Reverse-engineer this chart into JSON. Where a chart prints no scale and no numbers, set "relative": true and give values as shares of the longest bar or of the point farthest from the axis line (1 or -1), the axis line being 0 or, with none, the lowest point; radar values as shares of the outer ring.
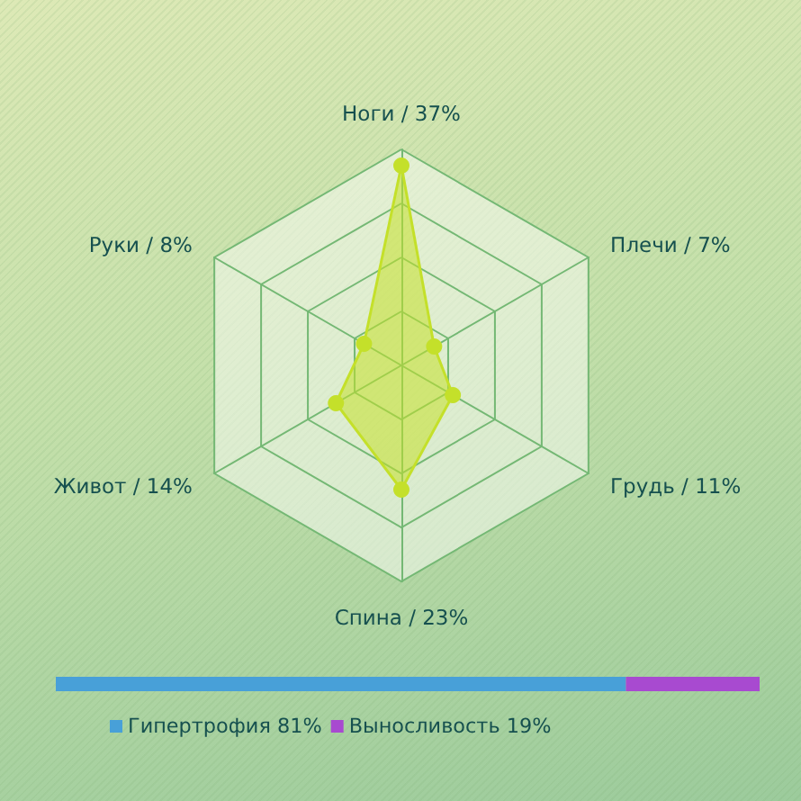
{
  "chart_data": [
    {
      "type": "radar",
      "relative": true,
      "grid": true,
      "marker": "circle",
      "categories": [
        "Ноги / 37%",
        "Плечи / 7%",
        "Грудь / 11%",
        "Спина / 23%",
        "Живот / 14%",
        "Руки / 8%"
      ],
      "series": [
        {
          "color": "#c4e02a",
          "values": [
            0.925,
            0.175,
            0.275,
            0.575,
            0.35,
            0.2
          ]
        }
      ]
    },
    {
      "type": "bar",
      "orientation": "horizontal",
      "stacked": true,
      "relative": true,
      "categories": [
        null
      ],
      "legend": "bottom",
      "series": [
        {
          "name": "Гипертрофия 81%",
          "color": "#48a0d8",
          "values": [
            0.81
          ]
        },
        {
          "name": "Выносливость 19%",
          "color": "#a84ad0",
          "values": [
            0.19
          ]
        }
      ]
    }
  ]
}
